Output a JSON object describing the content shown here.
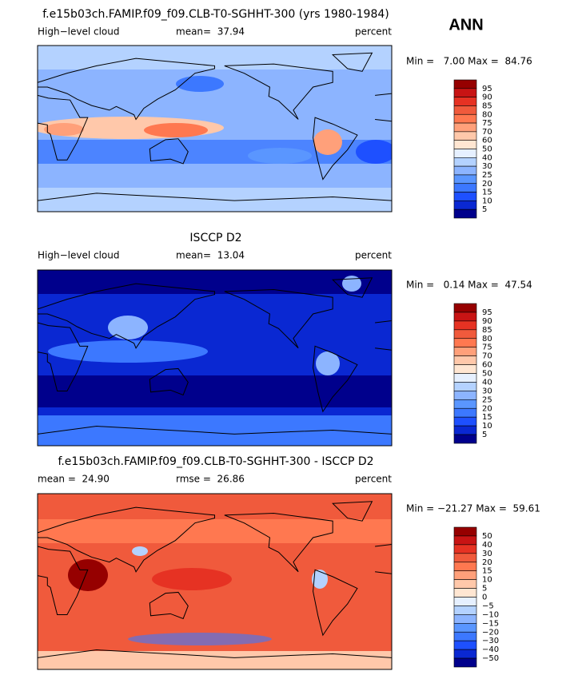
{
  "season": "ANN",
  "colorbar_colors": [
    "#960000",
    "#c81414",
    "#e63223",
    "#f05a3c",
    "#ff7850",
    "#ffa07a",
    "#ffc8aa",
    "#ffe6d2",
    "#e6f0ff",
    "#b4d2ff",
    "#8cb4ff",
    "#5a96ff",
    "#3c78ff",
    "#1e50ff",
    "#0a28d2",
    "#00008c"
  ],
  "panels": [
    {
      "title": "f.e15b03ch.FAMIP.f09_f09.CLB-T0-SGHHT-300 (yrs 1980-1984)",
      "left_label": "High−level cloud",
      "center_label": "mean=  37.94",
      "right_label": "percent",
      "min_max": "Min =   7.00 Max =  84.76",
      "colorbar_labels": [
        "95",
        "90",
        "85",
        "80",
        "75",
        "70",
        "60",
        "50",
        "40",
        "30",
        "25",
        "20",
        "15",
        "10",
        "5"
      ]
    },
    {
      "title": "ISCCP D2",
      "left_label": "High−level cloud",
      "center_label": "mean=  13.04",
      "right_label": "percent",
      "min_max": "Min =   0.14 Max =  47.54",
      "colorbar_labels": [
        "95",
        "90",
        "85",
        "80",
        "75",
        "70",
        "60",
        "50",
        "40",
        "30",
        "25",
        "20",
        "15",
        "10",
        "5"
      ]
    },
    {
      "title": "f.e15b03ch.FAMIP.f09_f09.CLB-T0-SGHHT-300 - ISCCP D2",
      "left_label": "mean =  24.90",
      "center_label": "rmse =  26.86",
      "right_label": "percent",
      "min_max": "Min = −21.27 Max =  59.61",
      "colorbar_labels": [
        "50",
        "40",
        "30",
        "20",
        "15",
        "10",
        "5",
        "0",
        "−5",
        "−10",
        "−15",
        "−20",
        "−30",
        "−40",
        "−50"
      ]
    }
  ]
}
